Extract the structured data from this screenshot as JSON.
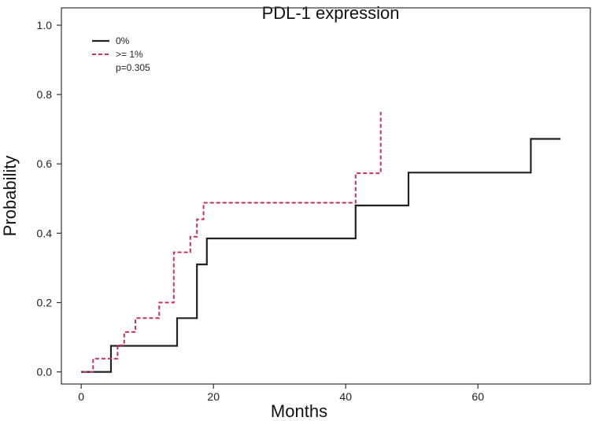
{
  "chart_data": {
    "type": "line",
    "subtype": "step-cumulative-incidence",
    "title": "PDL-1 expression",
    "xlabel": "Months",
    "ylabel": "Probability",
    "xlim": [
      -3,
      77
    ],
    "ylim": [
      -0.035,
      1.05
    ],
    "xticks": [
      0,
      20,
      40,
      60
    ],
    "yticks": [
      0.0,
      0.2,
      0.4,
      0.6,
      0.8,
      1.0
    ],
    "ytick_labels": [
      "0.0",
      "0.2",
      "0.4",
      "0.6",
      "0.8",
      "1.0"
    ],
    "legend_position": "top-left",
    "annotation": "p=0.305",
    "series": [
      {
        "name": "0%",
        "color": "#1f2326",
        "style": "solid",
        "x": [
          0,
          4.5,
          4.5,
          14.5,
          14.5,
          17.5,
          17.5,
          19,
          19,
          41.5,
          41.5,
          49.5,
          49.5,
          68,
          68,
          72.5
        ],
        "y": [
          0,
          0,
          0.075,
          0.075,
          0.155,
          0.155,
          0.31,
          0.31,
          0.385,
          0.385,
          0.48,
          0.48,
          0.575,
          0.575,
          0.672,
          0.672
        ]
      },
      {
        "name": ">= 1%",
        "color": "#c6325a",
        "style": "dashed",
        "x": [
          0.3,
          1.8,
          1.8,
          3.5,
          3.5,
          5.5,
          5.5,
          6.5,
          6.5,
          8.2,
          8.2,
          11.8,
          11.8,
          14,
          14,
          16.5,
          16.5,
          17.5,
          17.5,
          18.5,
          18.5,
          41.5,
          41.5,
          44.5,
          44.5,
          45.3,
          45.3
        ],
        "y": [
          0,
          0,
          0.038,
          0.038,
          0.038,
          0.038,
          0.077,
          0.077,
          0.115,
          0.115,
          0.155,
          0.155,
          0.2,
          0.2,
          0.345,
          0.345,
          0.39,
          0.39,
          0.44,
          0.44,
          0.488,
          0.488,
          0.573,
          0.573,
          0.573,
          0.573,
          0.75
        ]
      }
    ]
  }
}
